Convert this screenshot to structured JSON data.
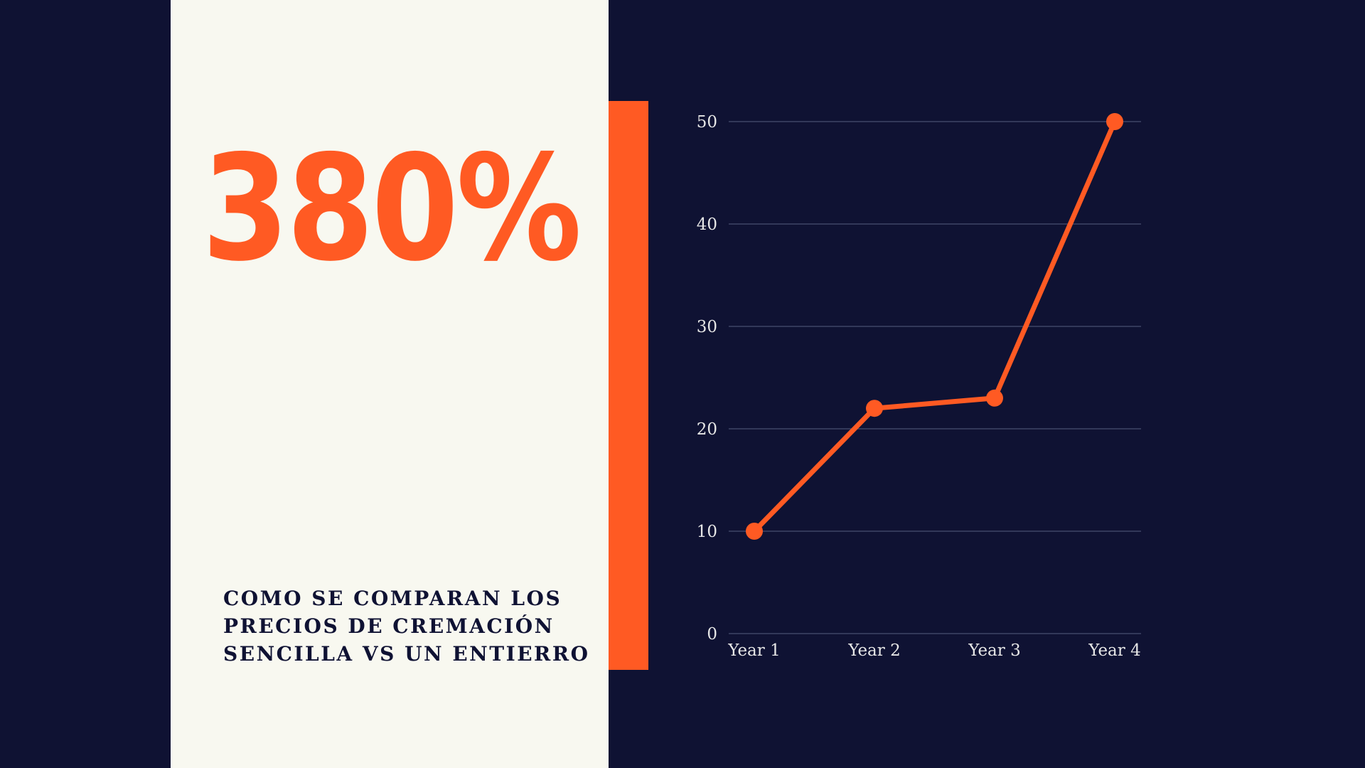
{
  "colors": {
    "background": "#0f1233",
    "panel": "#f8f8f0",
    "accent": "#ff5a23",
    "caption_text": "#0f1233",
    "grid": "#3f4466",
    "axis_text": "#e6e6e6"
  },
  "headline": {
    "stat": "380%",
    "caption": "COMO SE COMPARAN LOS PRECIOS DE CREMACIÓN SENCILLA VS UN ENTIERRO"
  },
  "chart_data": {
    "type": "line",
    "categories": [
      "Year 1",
      "Year 2",
      "Year 3",
      "Year 4"
    ],
    "series": [
      {
        "values": [
          10,
          22,
          23,
          50
        ]
      }
    ],
    "ylim": [
      0,
      50
    ],
    "yticks": [
      "0",
      "10",
      "20",
      "30",
      "40",
      "50"
    ],
    "grid": true,
    "legend": "none"
  }
}
